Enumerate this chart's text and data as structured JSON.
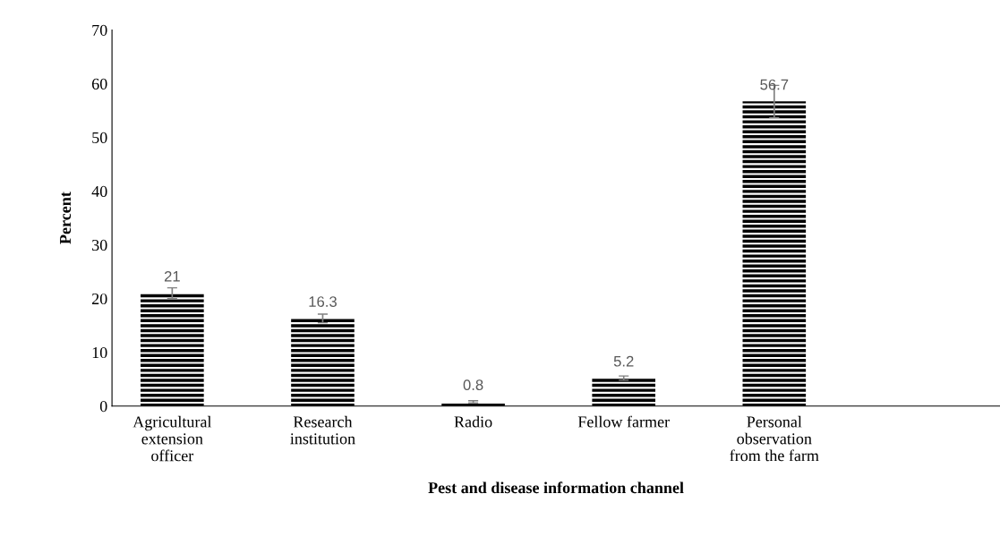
{
  "chart_data": {
    "type": "bar",
    "xlabel": "Pest and disease information channel",
    "ylabel": "Percent",
    "categories": [
      "Agricultural\nextension\nofficer",
      "Research\ninstitution",
      "Radio",
      "Fellow farmer",
      "Personal\nobservation\nfrom the farm",
      null
    ],
    "values": [
      21,
      16.3,
      0.8,
      5.2,
      56.7,
      null
    ],
    "errors": [
      1,
      0.8,
      0.2,
      0.4,
      3,
      null
    ],
    "color": "#000000",
    "data_labels": true,
    "ylim": [
      0,
      70
    ],
    "yticks": [
      0,
      10,
      20,
      30,
      40,
      50,
      60,
      70
    ],
    "grid": false,
    "legend": false
  }
}
